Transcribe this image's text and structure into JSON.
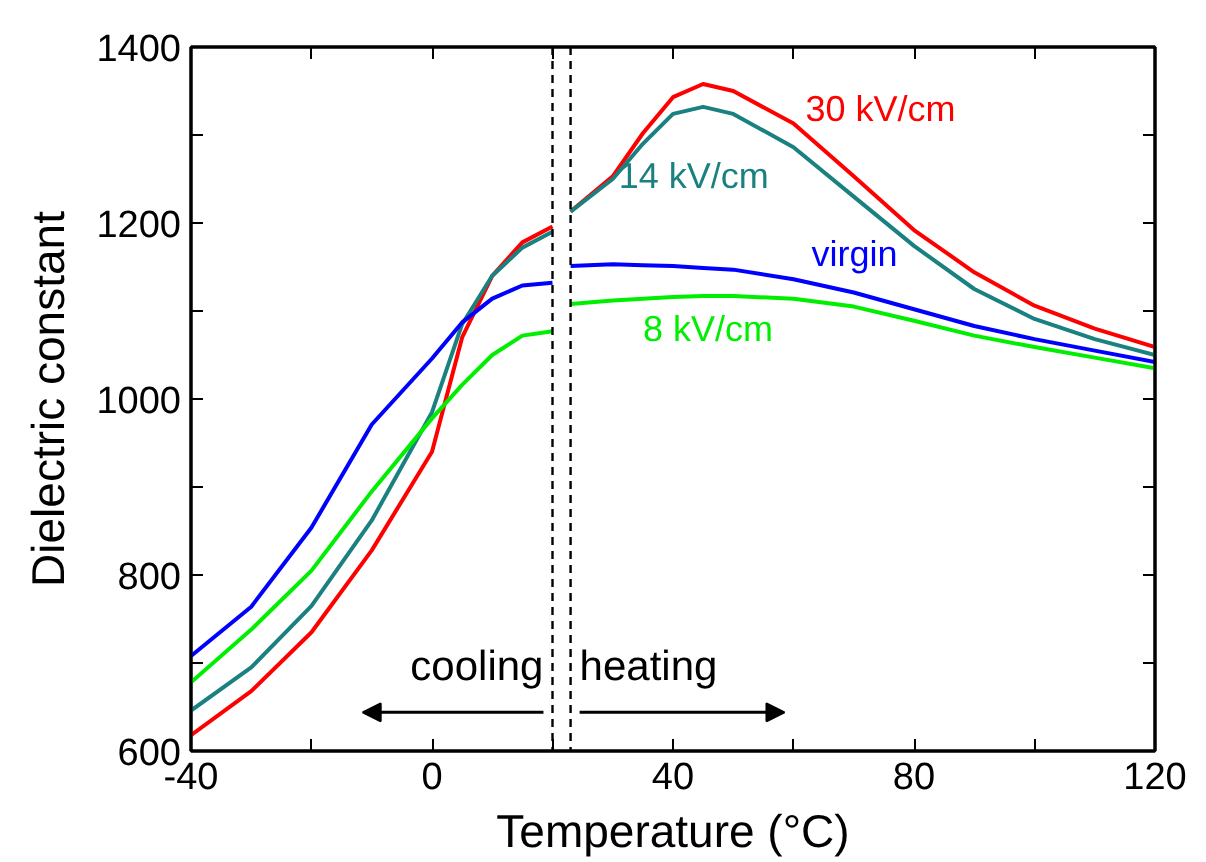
{
  "chart_data": {
    "type": "line",
    "xlabel": "Temperature (°C)",
    "ylabel": "Dielectric constant",
    "xlim": [
      -40,
      120
    ],
    "ylim": [
      600,
      1400
    ],
    "xticks": [
      -40,
      {
        "value": -20,
        "label": null
      },
      0,
      {
        "value": 20,
        "label": null
      },
      40,
      {
        "value": 60,
        "label": null
      },
      80,
      {
        "value": 100,
        "label": null
      },
      120
    ],
    "yticks": [
      600,
      {
        "value": 700,
        "label": null
      },
      800,
      {
        "value": 900,
        "label": null
      },
      1000,
      {
        "value": 1100,
        "label": null
      },
      1200,
      {
        "value": 1300,
        "label": null
      },
      1400
    ],
    "grid": false,
    "marker": "none",
    "line_style": "solid",
    "x": [
      -40,
      -30,
      -20,
      -10,
      0,
      5,
      10,
      15,
      20,
      21.5,
      23,
      30,
      35,
      40,
      45,
      50,
      60,
      70,
      80,
      90,
      100,
      110,
      120
    ],
    "series": [
      {
        "name": "30 kV/cm",
        "color": "#ff0000",
        "values": [
          618,
          668,
          735,
          828,
          940,
          1070,
          1140,
          1178,
          1196,
          null,
          1213,
          1253,
          1302,
          1343,
          1358,
          1350,
          1313,
          1253,
          1192,
          1144,
          1106,
          1080,
          1059
        ]
      },
      {
        "name": "14 kV/cm",
        "color": "#1a8080",
        "values": [
          646,
          695,
          765,
          862,
          985,
          1085,
          1140,
          1172,
          1190,
          null,
          1213,
          1250,
          1290,
          1324,
          1332,
          1324,
          1286,
          1230,
          1174,
          1125,
          1091,
          1068,
          1050
        ]
      },
      {
        "name": "virgin",
        "color": "#0000ff",
        "values": [
          708,
          764,
          854,
          971,
          1046,
          1087,
          1114,
          1129,
          1132,
          null,
          1151,
          1153,
          1152,
          1151,
          1149,
          1147,
          1136,
          1121,
          1102,
          1083,
          1068,
          1055,
          1042
        ]
      },
      {
        "name": "8 kV/cm",
        "color": "#00ee00",
        "values": [
          678,
          738,
          805,
          895,
          978,
          1016,
          1050,
          1072,
          1077,
          null,
          1108,
          1112,
          1114,
          1116,
          1117,
          1117,
          1114,
          1105,
          1089,
          1072,
          1059,
          1047,
          1035
        ]
      }
    ],
    "ref_lines": [
      {
        "axis": "x",
        "value": 20,
        "color": "#000000",
        "line_style": "dashed"
      },
      {
        "axis": "x",
        "value": 23,
        "color": "#000000",
        "line_style": "dashed"
      }
    ],
    "annotations": [
      "cooling",
      "heating"
    ]
  }
}
